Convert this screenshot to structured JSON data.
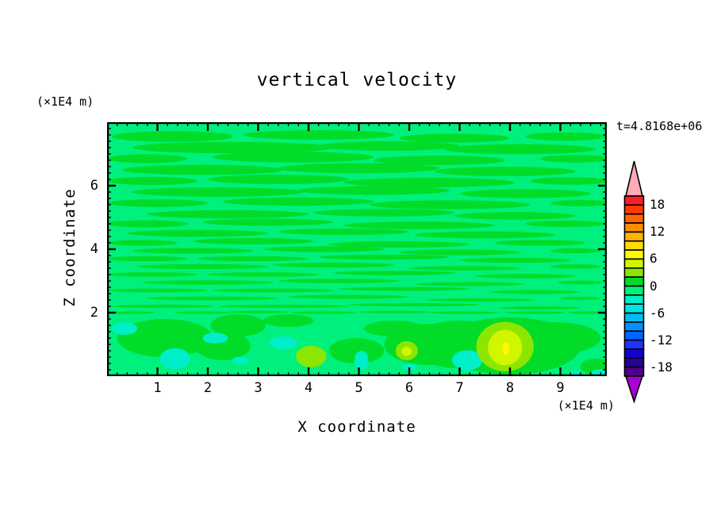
{
  "title": "vertical velocity",
  "time_label": "t=4.8168e+06",
  "axes": {
    "x": {
      "label": "X coordinate",
      "unit": "(×1E4 m)",
      "min": 0,
      "max": 9.92,
      "major_ticks": [
        1,
        2,
        3,
        4,
        5,
        6,
        7,
        8,
        9
      ],
      "minor_step": 0.2
    },
    "z": {
      "label": "Z coordinate",
      "unit": "(×1E4 m)",
      "min": 0,
      "max": 8,
      "major_ticks": [
        2,
        4,
        6
      ],
      "minor_step": 0.2
    }
  },
  "colorbar": {
    "labeled_levels": [
      18,
      12,
      6,
      0,
      -6,
      -12,
      -18
    ],
    "level_min": -20,
    "level_max": 20,
    "level_step": 2,
    "colors_top_to_bottom": [
      "#F91E28",
      "#FF3C00",
      "#FF6400",
      "#FF8C00",
      "#FFB400",
      "#FFDC00",
      "#FFFA00",
      "#D2F500",
      "#8CE600",
      "#00DC28",
      "#00F07D",
      "#00EEC8",
      "#00E6E6",
      "#00BEF5",
      "#0090FF",
      "#0064FF",
      "#1E32FF",
      "#1400D2",
      "#28009B",
      "#50008C"
    ],
    "over_color": "#FFAAB4",
    "under_color": "#AA00D2"
  },
  "chart_data": {
    "type": "heatmap",
    "subtype": "filled-contour",
    "title": "vertical velocity",
    "time_annotation": "t=4.8168e+06",
    "xlabel": "X coordinate",
    "ylabel": "Z coordinate",
    "x_unit_scale": "(×1E4 m)",
    "z_unit_scale": "(×1E4 m)",
    "xlim": [
      0,
      9.92
    ],
    "zlim": [
      0,
      8
    ],
    "contour_levels": {
      "min": -20,
      "max": 20,
      "step": 2
    },
    "legend_position": "right-colorbar-with-over-under-arrows",
    "grid": false,
    "field": {
      "background_value": -1,
      "note": "Mostly weak vertical velocity (-2..2) as wavy horizontal streaks above z=2; stronger cells below z=2 incl. an updraft max ~6-8 near x=7.9 and downdraft pockets -4..-2",
      "features": [
        {
          "value": 1,
          "ellipses": [
            [
              1.3,
              7.55,
              1.2,
              0.17
            ],
            [
              4.2,
              7.6,
              1.5,
              0.15
            ],
            [
              6.9,
              7.5,
              1.1,
              0.14
            ],
            [
              9.1,
              7.55,
              0.8,
              0.13
            ],
            [
              2.5,
              7.2,
              2.0,
              0.18
            ],
            [
              5.6,
              7.25,
              1.4,
              0.15
            ],
            [
              8.2,
              7.15,
              1.5,
              0.16
            ],
            [
              0.8,
              6.85,
              0.8,
              0.14
            ],
            [
              3.7,
              6.9,
              1.6,
              0.17
            ],
            [
              6.6,
              6.8,
              1.3,
              0.15
            ],
            [
              9.3,
              6.85,
              0.7,
              0.12
            ],
            [
              1.9,
              6.5,
              1.6,
              0.16
            ],
            [
              5.0,
              6.55,
              1.6,
              0.16
            ],
            [
              7.9,
              6.45,
              1.4,
              0.15
            ],
            [
              0.9,
              6.15,
              0.9,
              0.13
            ],
            [
              3.4,
              6.2,
              1.4,
              0.15
            ],
            [
              6.4,
              6.1,
              1.7,
              0.15
            ],
            [
              9.2,
              6.15,
              0.8,
              0.12
            ],
            [
              2.2,
              5.8,
              1.7,
              0.15
            ],
            [
              5.3,
              5.85,
              1.5,
              0.14
            ],
            [
              8.3,
              5.75,
              1.3,
              0.14
            ],
            [
              1.0,
              5.45,
              1.0,
              0.12
            ],
            [
              3.8,
              5.5,
              1.5,
              0.13
            ],
            [
              6.8,
              5.4,
              1.6,
              0.14
            ],
            [
              9.4,
              5.45,
              0.6,
              0.1
            ],
            [
              2.4,
              5.1,
              1.6,
              0.13
            ],
            [
              5.5,
              5.15,
              1.4,
              0.12
            ],
            [
              8.1,
              5.05,
              1.2,
              0.12
            ],
            [
              0.8,
              4.8,
              0.8,
              0.11
            ],
            [
              3.2,
              4.85,
              1.3,
              0.11
            ],
            [
              6.2,
              4.75,
              1.5,
              0.12
            ],
            [
              9.1,
              4.8,
              0.8,
              0.1
            ],
            [
              1.8,
              4.5,
              1.4,
              0.11
            ],
            [
              4.7,
              4.55,
              1.3,
              0.1
            ],
            [
              7.5,
              4.45,
              1.4,
              0.11
            ],
            [
              0.7,
              4.2,
              0.7,
              0.09
            ],
            [
              2.9,
              4.25,
              1.2,
              0.1
            ],
            [
              5.8,
              4.15,
              1.4,
              0.1
            ],
            [
              8.6,
              4.2,
              0.9,
              0.09
            ],
            [
              1.7,
              3.95,
              1.2,
              0.09
            ],
            [
              4.3,
              4.0,
              1.2,
              0.09
            ],
            [
              7.0,
              3.9,
              1.2,
              0.09
            ],
            [
              9.3,
              3.95,
              0.5,
              0.08
            ],
            [
              0.8,
              3.7,
              0.8,
              0.08
            ],
            [
              2.9,
              3.7,
              1.1,
              0.08
            ],
            [
              5.5,
              3.75,
              1.3,
              0.08
            ],
            [
              8.1,
              3.65,
              1.1,
              0.08
            ],
            [
              1.9,
              3.45,
              1.3,
              0.08
            ],
            [
              4.5,
              3.5,
              1.2,
              0.08
            ],
            [
              7.1,
              3.4,
              1.1,
              0.07
            ],
            [
              9.3,
              3.45,
              0.5,
              0.07
            ],
            [
              0.9,
              3.2,
              0.9,
              0.07
            ],
            [
              3.1,
              3.2,
              1.1,
              0.07
            ],
            [
              5.7,
              3.25,
              1.2,
              0.07
            ],
            [
              8.3,
              3.15,
              1.0,
              0.07
            ],
            [
              2.0,
              2.95,
              1.3,
              0.07
            ],
            [
              4.6,
              3.0,
              1.2,
              0.07
            ],
            [
              7.2,
              2.9,
              1.1,
              0.06
            ],
            [
              9.4,
              2.95,
              0.45,
              0.06
            ],
            [
              1.0,
              2.7,
              1.0,
              0.06
            ],
            [
              3.3,
              2.7,
              1.2,
              0.06
            ],
            [
              5.9,
              2.75,
              1.3,
              0.06
            ],
            [
              8.5,
              2.65,
              0.9,
              0.06
            ],
            [
              2.1,
              2.45,
              1.3,
              0.06
            ],
            [
              4.8,
              2.5,
              1.2,
              0.06
            ],
            [
              7.4,
              2.4,
              1.1,
              0.05
            ],
            [
              9.4,
              2.45,
              0.4,
              0.05
            ],
            [
              1.1,
              2.2,
              1.0,
              0.05
            ],
            [
              3.5,
              2.2,
              1.3,
              0.05
            ],
            [
              6.1,
              2.25,
              1.3,
              0.05
            ],
            [
              8.6,
              2.15,
              0.8,
              0.05
            ],
            [
              0.5,
              2.0,
              0.45,
              0.04
            ],
            [
              1.9,
              2.0,
              0.55,
              0.04
            ],
            [
              3.0,
              2.02,
              0.6,
              0.04
            ],
            [
              4.3,
              2.0,
              0.65,
              0.04
            ],
            [
              5.7,
              2.02,
              0.7,
              0.04
            ],
            [
              7.1,
              2.0,
              0.7,
              0.04
            ],
            [
              8.5,
              2.0,
              0.6,
              0.04
            ],
            [
              9.5,
              2.0,
              0.35,
              0.04
            ],
            [
              1.15,
              1.2,
              0.95,
              0.6
            ],
            [
              2.6,
              1.6,
              0.55,
              0.35
            ],
            [
              2.3,
              0.95,
              0.55,
              0.45
            ],
            [
              3.6,
              1.75,
              0.5,
              0.2
            ],
            [
              4.95,
              0.8,
              0.55,
              0.4
            ],
            [
              5.7,
              1.5,
              0.6,
              0.25
            ],
            [
              6.4,
              1.0,
              0.9,
              0.65
            ],
            [
              7.0,
              1.0,
              1.0,
              0.75
            ],
            [
              8.0,
              0.95,
              1.4,
              0.9
            ],
            [
              8.9,
              1.2,
              0.9,
              0.5
            ],
            [
              9.7,
              0.3,
              0.3,
              0.25
            ]
          ]
        },
        {
          "value": -3,
          "ellipses": [
            [
              0.35,
              1.5,
              0.25,
              0.2
            ],
            [
              1.35,
              0.55,
              0.3,
              0.33
            ],
            [
              2.15,
              1.2,
              0.25,
              0.17
            ],
            [
              3.5,
              1.05,
              0.28,
              0.2
            ],
            [
              2.65,
              0.5,
              0.16,
              0.12
            ],
            [
              5.05,
              0.5,
              0.14,
              0.3
            ],
            [
              7.15,
              0.5,
              0.3,
              0.32
            ],
            [
              6.0,
              0.28,
              0.15,
              0.1
            ],
            [
              9.8,
              0.12,
              0.18,
              0.1
            ],
            [
              9.3,
              0.1,
              0.12,
              0.08
            ]
          ]
        },
        {
          "value": 3,
          "ellipses": [
            [
              4.05,
              0.62,
              0.3,
              0.34
            ],
            [
              5.95,
              0.8,
              0.22,
              0.3
            ],
            [
              7.9,
              0.93,
              0.57,
              0.78
            ]
          ]
        },
        {
          "value": 5,
          "ellipses": [
            [
              7.9,
              0.9,
              0.34,
              0.56
            ],
            [
              5.95,
              0.78,
              0.1,
              0.14
            ]
          ]
        },
        {
          "value": 7,
          "ellipses": [
            [
              7.92,
              0.85,
              0.07,
              0.2
            ]
          ]
        }
      ]
    }
  }
}
